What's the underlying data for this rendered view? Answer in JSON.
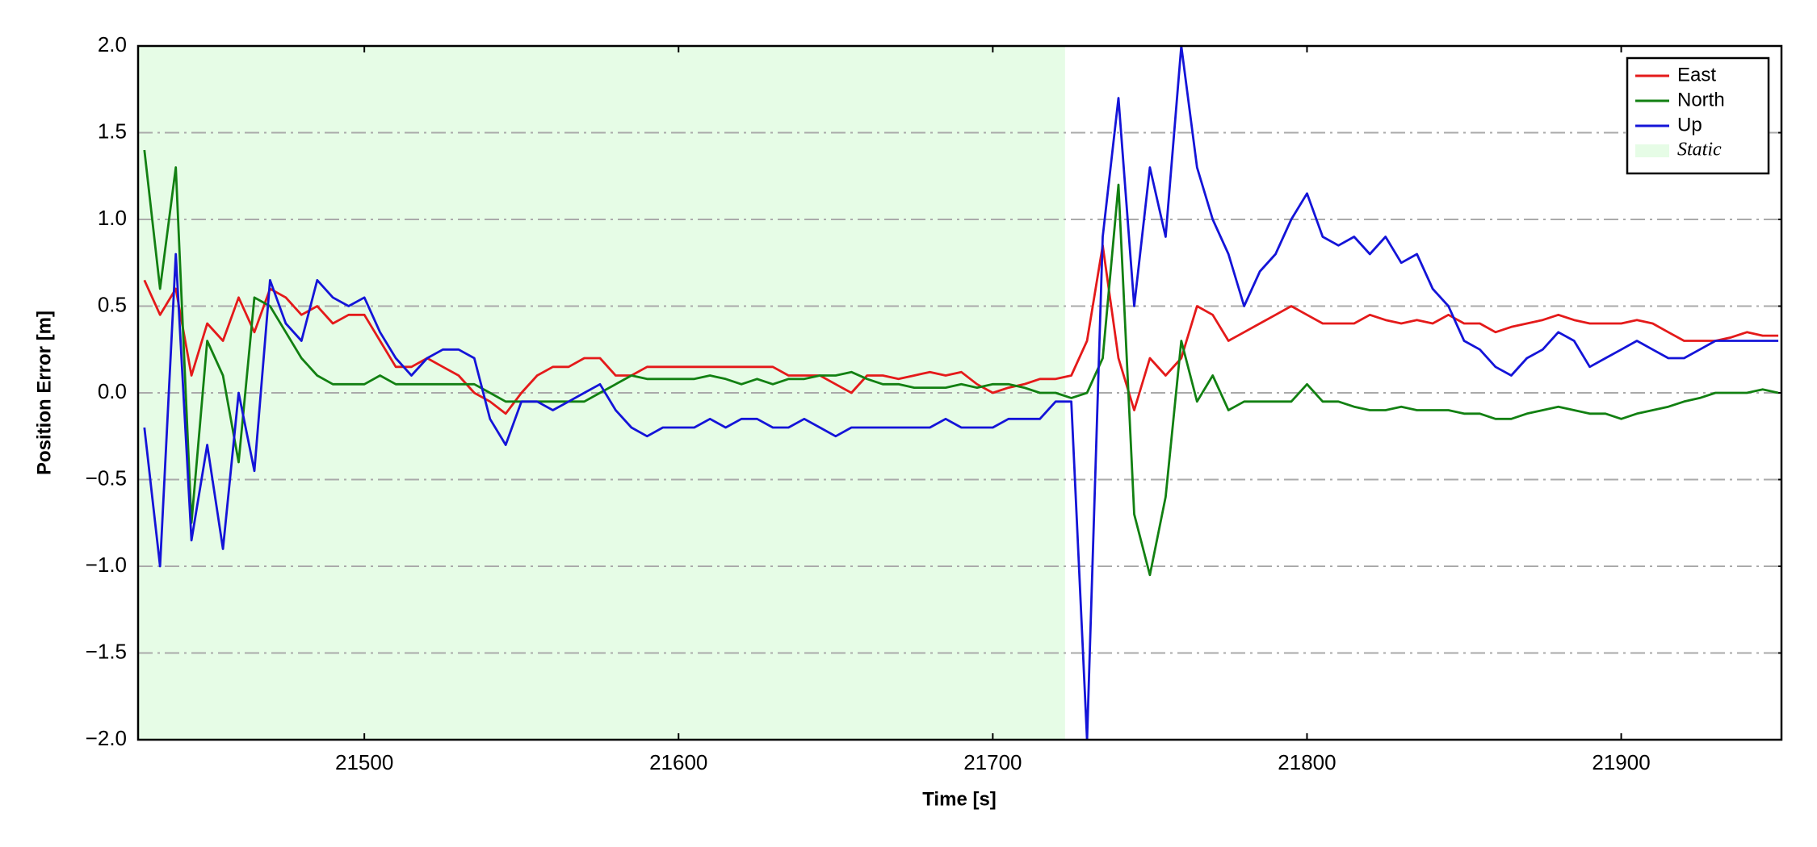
{
  "chart_data": {
    "type": "line",
    "xlabel": "Time [s]",
    "ylabel": "Position Error [m]",
    "xlim": [
      21428,
      21951
    ],
    "ylim": [
      -2,
      2
    ],
    "xticks": [
      21500,
      21600,
      21700,
      21800,
      21900
    ],
    "yticks": [
      {
        "value": -2,
        "label": "−2.0"
      },
      {
        "value": -1.5,
        "label": "−1.5"
      },
      {
        "value": -1,
        "label": "−1.0"
      },
      {
        "value": -0.5,
        "label": "−0.5"
      },
      {
        "value": 0,
        "label": "0.0"
      },
      0.5,
      {
        "value": 1,
        "label": "1.0"
      },
      1.5,
      {
        "value": 2,
        "label": "2.0"
      }
    ],
    "grid": true,
    "legend": "upper right",
    "shade": {
      "name": "Static",
      "color": "#e6fce6",
      "range": [
        21428,
        21723
      ]
    },
    "x": [
      21430,
      21435,
      21440,
      21445,
      21450,
      21455,
      21460,
      21465,
      21470,
      21475,
      21480,
      21485,
      21490,
      21495,
      21500,
      21505,
      21510,
      21515,
      21520,
      21525,
      21530,
      21535,
      21540,
      21545,
      21550,
      21555,
      21560,
      21565,
      21570,
      21575,
      21580,
      21585,
      21590,
      21595,
      21600,
      21605,
      21610,
      21615,
      21620,
      21625,
      21630,
      21635,
      21640,
      21645,
      21650,
      21655,
      21660,
      21665,
      21670,
      21675,
      21680,
      21685,
      21690,
      21695,
      21700,
      21705,
      21710,
      21715,
      21720,
      21725,
      21730,
      21735,
      21740,
      21745,
      21750,
      21755,
      21760,
      21765,
      21770,
      21775,
      21780,
      21785,
      21790,
      21795,
      21800,
      21805,
      21810,
      21815,
      21820,
      21825,
      21830,
      21835,
      21840,
      21845,
      21850,
      21855,
      21860,
      21865,
      21870,
      21875,
      21880,
      21885,
      21890,
      21895,
      21900,
      21905,
      21910,
      21915,
      21920,
      21925,
      21930,
      21935,
      21940,
      21945,
      21950
    ],
    "series": [
      {
        "name": "East",
        "color": "#e41a1a",
        "values": [
          0.65,
          0.45,
          0.6,
          0.1,
          0.4,
          0.3,
          0.55,
          0.35,
          0.6,
          0.55,
          0.45,
          0.5,
          0.4,
          0.45,
          0.45,
          0.3,
          0.15,
          0.15,
          0.2,
          0.15,
          0.1,
          0.0,
          -0.05,
          -0.12,
          0.0,
          0.1,
          0.15,
          0.15,
          0.2,
          0.2,
          0.1,
          0.1,
          0.15,
          0.15,
          0.15,
          0.15,
          0.15,
          0.15,
          0.15,
          0.15,
          0.15,
          0.1,
          0.1,
          0.1,
          0.05,
          0.0,
          0.1,
          0.1,
          0.08,
          0.1,
          0.12,
          0.1,
          0.12,
          0.05,
          0.0,
          0.03,
          0.05,
          0.08,
          0.08,
          0.1,
          0.3,
          0.85,
          0.2,
          -0.1,
          0.2,
          0.1,
          0.2,
          0.5,
          0.45,
          0.3,
          0.35,
          0.4,
          0.45,
          0.5,
          0.45,
          0.4,
          0.4,
          0.4,
          0.45,
          0.42,
          0.4,
          0.42,
          0.4,
          0.45,
          0.4,
          0.4,
          0.35,
          0.38,
          0.4,
          0.42,
          0.45,
          0.42,
          0.4,
          0.4,
          0.4,
          0.42,
          0.4,
          0.35,
          0.3,
          0.3,
          0.3,
          0.32,
          0.35,
          0.33,
          0.33
        ]
      },
      {
        "name": "North",
        "color": "#128012",
        "values": [
          1.4,
          0.6,
          1.3,
          -0.75,
          0.3,
          0.1,
          -0.4,
          0.55,
          0.5,
          0.35,
          0.2,
          0.1,
          0.05,
          0.05,
          0.05,
          0.1,
          0.05,
          0.05,
          0.05,
          0.05,
          0.05,
          0.05,
          0.0,
          -0.05,
          -0.05,
          -0.05,
          -0.05,
          -0.05,
          -0.05,
          0.0,
          0.05,
          0.1,
          0.08,
          0.08,
          0.08,
          0.08,
          0.1,
          0.08,
          0.05,
          0.08,
          0.05,
          0.08,
          0.08,
          0.1,
          0.1,
          0.12,
          0.08,
          0.05,
          0.05,
          0.03,
          0.03,
          0.03,
          0.05,
          0.03,
          0.05,
          0.05,
          0.03,
          0.0,
          0.0,
          -0.03,
          0.0,
          0.2,
          1.2,
          -0.7,
          -1.05,
          -0.6,
          0.3,
          -0.05,
          0.1,
          -0.1,
          -0.05,
          -0.05,
          -0.05,
          -0.05,
          0.05,
          -0.05,
          -0.05,
          -0.08,
          -0.1,
          -0.1,
          -0.08,
          -0.1,
          -0.1,
          -0.1,
          -0.12,
          -0.12,
          -0.15,
          -0.15,
          -0.12,
          -0.1,
          -0.08,
          -0.1,
          -0.12,
          -0.12,
          -0.15,
          -0.12,
          -0.1,
          -0.08,
          -0.05,
          -0.03,
          0.0,
          0.0,
          0.0,
          0.02,
          0.0
        ]
      },
      {
        "name": "Up",
        "color": "#1414d8",
        "values": [
          -0.2,
          -1.0,
          0.8,
          -0.85,
          -0.3,
          -0.9,
          0.0,
          -0.45,
          0.65,
          0.4,
          0.3,
          0.65,
          0.55,
          0.5,
          0.55,
          0.35,
          0.2,
          0.1,
          0.2,
          0.25,
          0.25,
          0.2,
          -0.15,
          -0.3,
          -0.05,
          -0.05,
          -0.1,
          -0.05,
          0.0,
          0.05,
          -0.1,
          -0.2,
          -0.25,
          -0.2,
          -0.2,
          -0.2,
          -0.15,
          -0.2,
          -0.15,
          -0.15,
          -0.2,
          -0.2,
          -0.15,
          -0.2,
          -0.25,
          -0.2,
          -0.2,
          -0.2,
          -0.2,
          -0.2,
          -0.2,
          -0.15,
          -0.2,
          -0.2,
          -0.2,
          -0.15,
          -0.15,
          -0.15,
          -0.05,
          -0.05,
          -2.0,
          0.9,
          1.7,
          0.5,
          1.3,
          0.9,
          2.0,
          1.3,
          1.0,
          0.8,
          0.5,
          0.7,
          0.8,
          1.0,
          1.15,
          0.9,
          0.85,
          0.9,
          0.8,
          0.9,
          0.75,
          0.8,
          0.6,
          0.5,
          0.3,
          0.25,
          0.15,
          0.1,
          0.2,
          0.25,
          0.35,
          0.3,
          0.15,
          0.2,
          0.25,
          0.3,
          0.25,
          0.2,
          0.2,
          0.25,
          0.3,
          0.3,
          0.3,
          0.3,
          0.3
        ]
      }
    ]
  }
}
